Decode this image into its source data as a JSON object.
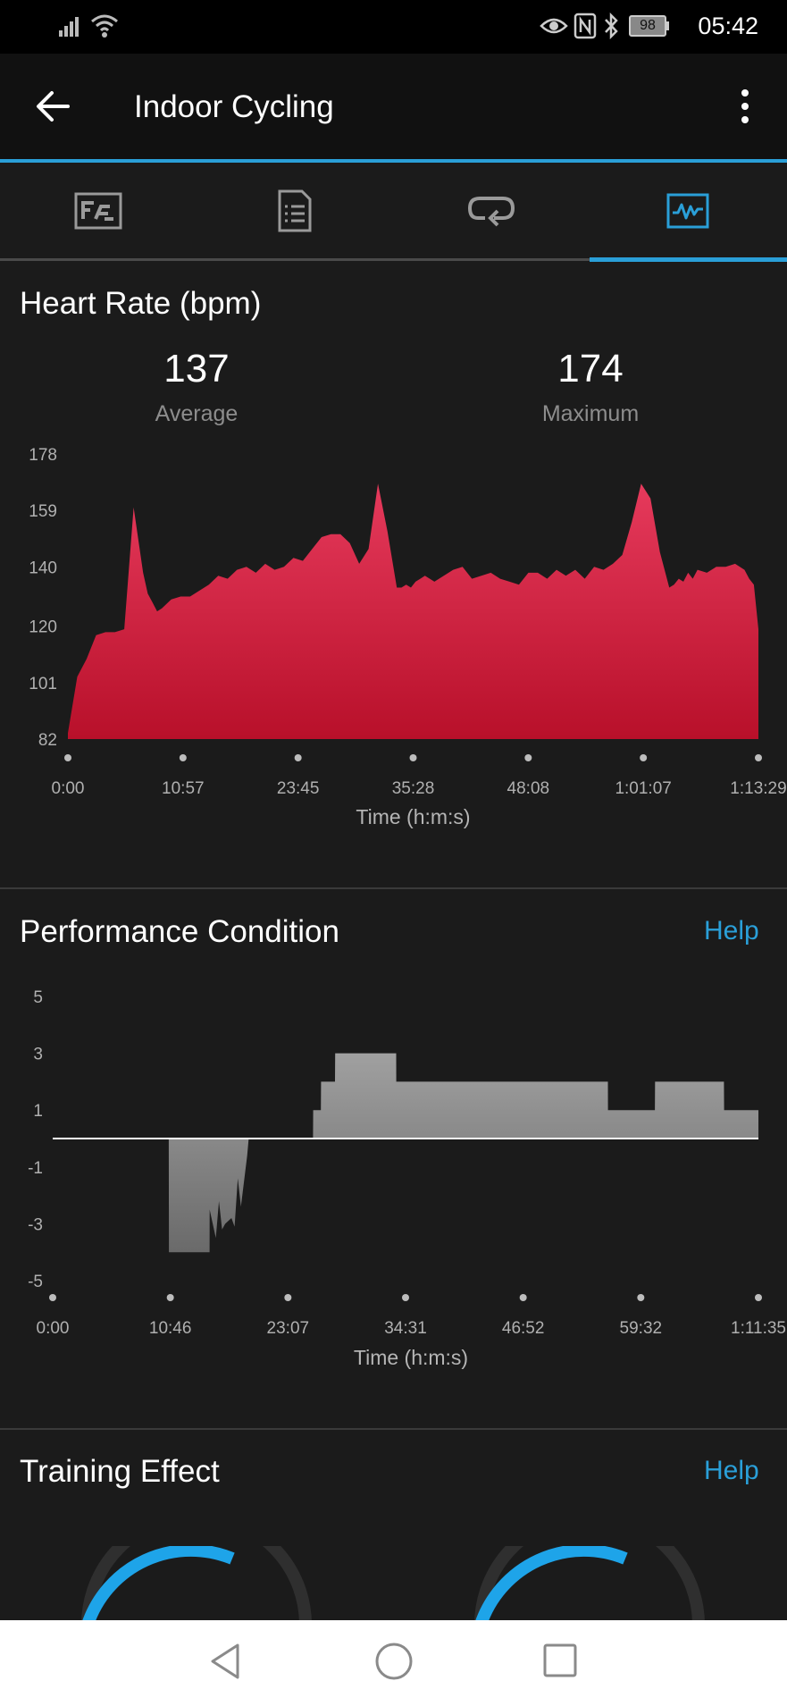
{
  "status_bar": {
    "time": "05:42",
    "battery": "98"
  },
  "app_bar": {
    "title": "Indoor Cycling"
  },
  "tabs": [
    {
      "icon": "overview-icon",
      "active": false
    },
    {
      "icon": "details-icon",
      "active": false
    },
    {
      "icon": "laps-icon",
      "active": false
    },
    {
      "icon": "charts-icon",
      "active": true
    }
  ],
  "heart_rate": {
    "title": "Heart Rate (bpm)",
    "average_value": "137",
    "average_label": "Average",
    "maximum_value": "174",
    "maximum_label": "Maximum"
  },
  "performance": {
    "title": "Performance Condition",
    "help": "Help"
  },
  "training": {
    "title": "Training Effect",
    "help": "Help"
  },
  "colors": {
    "accent": "#2a9fd8",
    "hr_fill_top": "#e63a5c",
    "hr_fill_bottom": "#b8102a",
    "perf_fill": "#8c8c8c"
  },
  "chart_data": [
    {
      "type": "area",
      "title": "Heart Rate (bpm)",
      "xlabel": "Time (h:m:s)",
      "ylabel": "",
      "x_ticks": [
        "0:00",
        "10:57",
        "23:45",
        "35:28",
        "48:08",
        "1:01:07",
        "1:13:29"
      ],
      "y_ticks": [
        178,
        159,
        140,
        120,
        101,
        82
      ],
      "xlim_seconds": [
        0,
        4409
      ],
      "ylim": [
        82,
        178
      ],
      "x_seconds": [
        0,
        60,
        120,
        180,
        240,
        300,
        360,
        420,
        480,
        510,
        540,
        570,
        600,
        660,
        720,
        780,
        840,
        900,
        960,
        1020,
        1080,
        1140,
        1200,
        1260,
        1320,
        1380,
        1440,
        1500,
        1560,
        1620,
        1680,
        1740,
        1800,
        1860,
        1920,
        1980,
        2040,
        2100,
        2130,
        2160,
        2190,
        2220,
        2250,
        2280,
        2340,
        2400,
        2460,
        2520,
        2580,
        2640,
        2700,
        2760,
        2820,
        2880,
        2940,
        3000,
        3060,
        3120,
        3180,
        3240,
        3300,
        3360,
        3420,
        3480,
        3540,
        3600,
        3660,
        3720,
        3780,
        3840,
        3870,
        3900,
        3930,
        3960,
        3990,
        4020,
        4080,
        4140,
        4200,
        4260,
        4320,
        4350,
        4380,
        4409
      ],
      "values": [
        84,
        103,
        109,
        117,
        118,
        118,
        119,
        160,
        138,
        131,
        128,
        125,
        126,
        129,
        130,
        130,
        132,
        134,
        137,
        136,
        139,
        140,
        138,
        141,
        139,
        140,
        143,
        142,
        146,
        150,
        151,
        151,
        148,
        141,
        146,
        168,
        152,
        133,
        133,
        134,
        133,
        135,
        136,
        137,
        135,
        137,
        139,
        140,
        136,
        137,
        138,
        136,
        135,
        134,
        138,
        138,
        136,
        139,
        137,
        139,
        136,
        140,
        139,
        141,
        144,
        155,
        168,
        163,
        145,
        133,
        134,
        136,
        135,
        138,
        136,
        139,
        138,
        140,
        140,
        141,
        139,
        136,
        134,
        119
      ]
    },
    {
      "type": "area",
      "title": "Performance Condition",
      "xlabel": "Time (h:m:s)",
      "ylabel": "",
      "x_ticks": [
        "0:00",
        "10:46",
        "23:07",
        "34:31",
        "46:52",
        "59:32",
        "1:11:35"
      ],
      "y_ticks": [
        5,
        3,
        1,
        -1,
        -3,
        -5
      ],
      "xlim_seconds": [
        0,
        4500
      ],
      "ylim": [
        -5,
        5
      ],
      "x_seconds": [
        0,
        740,
        741,
        1000,
        1001,
        1040,
        1060,
        1080,
        1100,
        1140,
        1160,
        1180,
        1200,
        1240,
        1250,
        1660,
        1661,
        1710,
        1711,
        1800,
        1801,
        2190,
        2191,
        3540,
        3541,
        3840,
        3841,
        4280,
        4281,
        4500
      ],
      "values": [
        0,
        0,
        -4,
        -4,
        -2.5,
        -3.5,
        -2.2,
        -3.2,
        -3.0,
        -2.8,
        -3.1,
        -1.4,
        -2.4,
        -0.6,
        0,
        0,
        1,
        1,
        2,
        2,
        3,
        3,
        2,
        2,
        1,
        1,
        2,
        2,
        1,
        1
      ]
    }
  ]
}
